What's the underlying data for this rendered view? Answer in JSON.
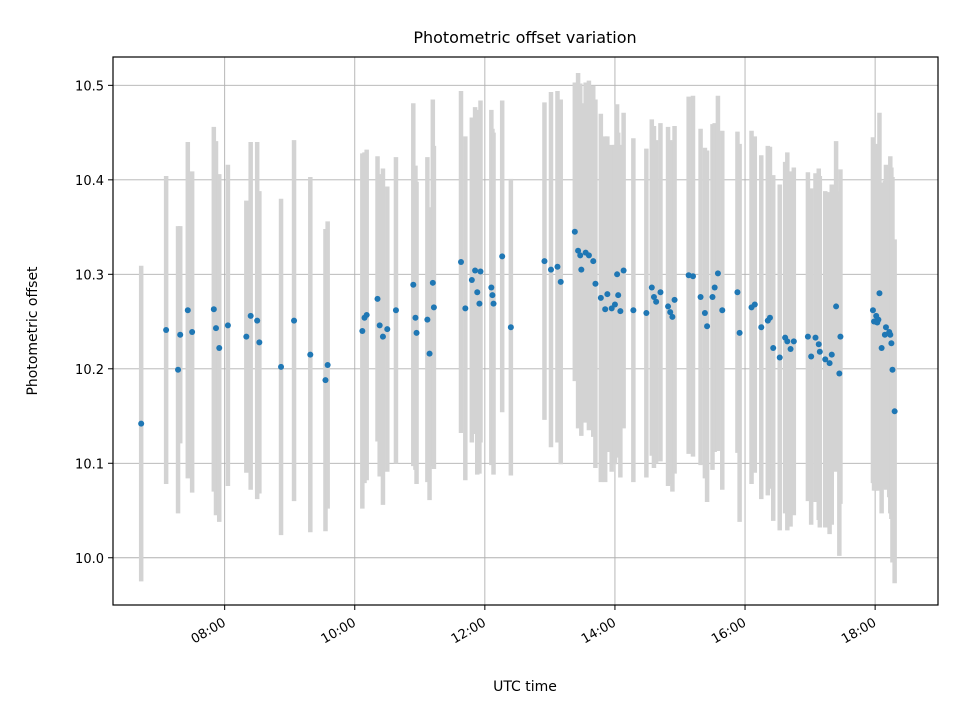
{
  "chart_data": {
    "type": "scatter",
    "title": "Photometric offset variation",
    "xlabel": "UTC time",
    "ylabel": "Photometric offset",
    "xlim": [
      "06:17",
      "18:58"
    ],
    "ylim": [
      9.95,
      10.53
    ],
    "x_ticks": [
      "08:00",
      "10:00",
      "12:00",
      "14:00",
      "16:00",
      "18:00"
    ],
    "y_ticks": [
      10.0,
      10.1,
      10.2,
      10.3,
      10.4,
      10.5
    ],
    "y_tick_labels": [
      "10.0",
      "10.1",
      "10.2",
      "10.3",
      "10.4",
      "10.5"
    ],
    "grid": true,
    "point_color": "#1f77b4",
    "errorbar_color": "#d3d3d3",
    "series": [
      {
        "x": [
          "06:43",
          "07:06",
          "07:17",
          "07:19",
          "07:26",
          "07:30",
          "07:50",
          "07:52",
          "07:55",
          "08:03",
          "08:20",
          "08:24",
          "08:30",
          "08:32",
          "08:52",
          "09:04",
          "09:19",
          "09:33",
          "09:35",
          "10:07",
          "10:09",
          "10:11",
          "10:21",
          "10:23",
          "10:26",
          "10:30",
          "10:38",
          "10:54",
          "10:56",
          "10:57",
          "11:07",
          "11:09",
          "11:12",
          "11:13",
          "11:38",
          "11:42",
          "11:48",
          "11:51",
          "11:53",
          "11:55",
          "11:56",
          "12:06",
          "12:07",
          "12:08",
          "12:16",
          "12:24",
          "12:55",
          "13:01",
          "13:07",
          "13:10",
          "13:23",
          "13:26",
          "13:28",
          "13:29",
          "13:33",
          "13:36",
          "13:40",
          "13:42",
          "13:47",
          "13:51",
          "13:53",
          "13:57",
          "14:00",
          "14:02",
          "14:03",
          "14:05",
          "14:08",
          "14:17",
          "14:29",
          "14:34",
          "14:36",
          "14:38",
          "14:42",
          "14:49",
          "14:51",
          "14:53",
          "14:55",
          "15:08",
          "15:12",
          "15:19",
          "15:23",
          "15:25",
          "15:30",
          "15:32",
          "15:35",
          "15:39",
          "15:53",
          "15:55",
          "16:06",
          "16:09",
          "16:15",
          "16:21",
          "16:23",
          "16:26",
          "16:32",
          "16:37",
          "16:39",
          "16:42",
          "16:45",
          "16:58",
          "17:01",
          "17:05",
          "17:08",
          "17:09",
          "17:14",
          "17:18",
          "17:20",
          "17:24",
          "17:27",
          "17:28",
          "17:58",
          "17:59",
          "18:00",
          "18:01",
          "18:02",
          "18:03",
          "18:04",
          "18:06",
          "18:09",
          "18:10",
          "18:13",
          "18:14",
          "18:15",
          "18:16",
          "18:18"
        ],
        "y": [
          10.142,
          10.241,
          10.199,
          10.236,
          10.262,
          10.239,
          10.263,
          10.243,
          10.222,
          10.246,
          10.234,
          10.256,
          10.251,
          10.228,
          10.202,
          10.251,
          10.215,
          10.188,
          10.204,
          10.24,
          10.254,
          10.257,
          10.274,
          10.246,
          10.234,
          10.242,
          10.262,
          10.289,
          10.254,
          10.238,
          10.252,
          10.216,
          10.291,
          10.265,
          10.313,
          10.264,
          10.294,
          10.304,
          10.281,
          10.269,
          10.303,
          10.286,
          10.278,
          10.269,
          10.319,
          10.244,
          10.314,
          10.305,
          10.308,
          10.292,
          10.345,
          10.325,
          10.32,
          10.305,
          10.323,
          10.32,
          10.314,
          10.29,
          10.275,
          10.263,
          10.279,
          10.264,
          10.268,
          10.3,
          10.278,
          10.261,
          10.304,
          10.262,
          10.259,
          10.286,
          10.276,
          10.271,
          10.281,
          10.266,
          10.26,
          10.255,
          10.273,
          10.299,
          10.298,
          10.276,
          10.259,
          10.245,
          10.276,
          10.286,
          10.301,
          10.262,
          10.281,
          10.238,
          10.265,
          10.268,
          10.244,
          10.251,
          10.254,
          10.222,
          10.212,
          10.233,
          10.229,
          10.221,
          10.229,
          10.234,
          10.213,
          10.233,
          10.226,
          10.218,
          10.21,
          10.206,
          10.215,
          10.266,
          10.195,
          10.234,
          10.262,
          10.25,
          10.25,
          10.256,
          10.249,
          10.252,
          10.28,
          10.222,
          10.236,
          10.244,
          10.239,
          10.236,
          10.227,
          10.199,
          10.155
        ],
        "err": [
          0.167,
          0.163,
          0.152,
          0.115,
          0.178,
          0.17,
          0.193,
          0.198,
          0.184,
          0.17,
          0.144,
          0.184,
          0.189,
          0.16,
          0.178,
          0.191,
          0.188,
          0.16,
          0.152,
          0.188,
          0.175,
          0.175,
          0.151,
          0.16,
          0.178,
          0.151,
          0.162,
          0.192,
          0.161,
          0.16,
          0.172,
          0.155,
          0.194,
          0.171,
          0.181,
          0.182,
          0.172,
          0.173,
          0.193,
          0.18,
          0.181,
          0.188,
          0.176,
          0.181,
          0.165,
          0.157,
          0.168,
          0.188,
          0.186,
          0.193,
          0.158,
          0.188,
          0.182,
          0.176,
          0.18,
          0.185,
          0.186,
          0.195,
          0.195,
          0.183,
          0.167,
          0.173,
          0.169,
          0.18,
          0.172,
          0.176,
          0.167,
          0.182,
          0.174,
          0.178,
          0.181,
          0.171,
          0.179,
          0.19,
          0.182,
          0.185,
          0.184,
          0.189,
          0.191,
          0.178,
          0.175,
          0.186,
          0.183,
          0.174,
          0.188,
          0.19,
          0.17,
          0.2,
          0.187,
          0.178,
          0.182,
          0.185,
          0.181,
          0.183,
          0.183,
          0.186,
          0.2,
          0.188,
          0.184,
          0.174,
          0.178,
          0.174,
          0.186,
          0.186,
          0.178,
          0.181,
          0.18,
          0.175,
          0.193,
          0.177,
          0.183,
          0.179,
          0.179,
          0.182,
          0.178,
          0.181,
          0.191,
          0.175,
          0.163,
          0.172,
          0.175,
          0.189,
          0.186,
          0.204,
          0.182
        ]
      }
    ]
  }
}
